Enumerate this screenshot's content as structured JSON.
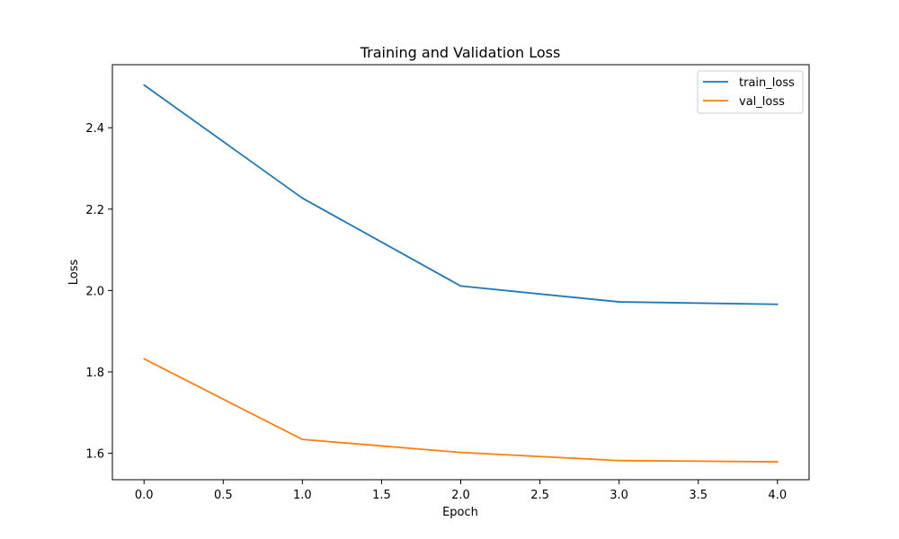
{
  "chart_data": {
    "type": "line",
    "title": "Training and Validation Loss",
    "xlabel": "Epoch",
    "ylabel": "Loss",
    "x": [
      0,
      1,
      2,
      3,
      4
    ],
    "xlim": [
      -0.2,
      4.2
    ],
    "ylim": [
      1.535,
      2.555
    ],
    "xticks": [
      0.0,
      0.5,
      1.0,
      1.5,
      2.0,
      2.5,
      3.0,
      3.5,
      4.0
    ],
    "xtick_labels": [
      "0.0",
      "0.5",
      "1.0",
      "1.5",
      "2.0",
      "2.5",
      "3.0",
      "3.5",
      "4.0"
    ],
    "yticks": [
      1.6,
      1.8,
      2.0,
      2.2,
      2.4
    ],
    "ytick_labels": [
      "1.6",
      "1.8",
      "2.0",
      "2.2",
      "2.4"
    ],
    "grid": false,
    "legend_position": "top-right",
    "series": [
      {
        "name": "train_loss",
        "color": "#1f77b4",
        "values": [
          2.505,
          2.227,
          2.011,
          1.972,
          1.966
        ]
      },
      {
        "name": "val_loss",
        "color": "#ff7f0e",
        "values": [
          1.832,
          1.634,
          1.602,
          1.582,
          1.579
        ]
      }
    ]
  }
}
